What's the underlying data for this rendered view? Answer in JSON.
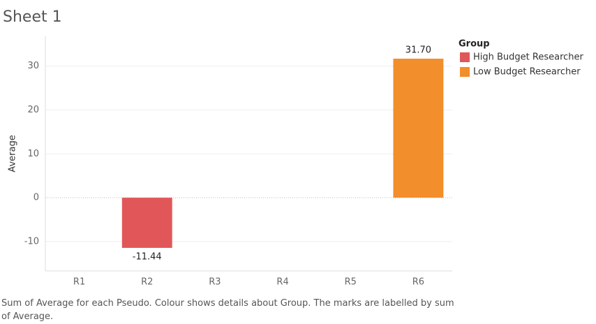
{
  "chart_data": {
    "type": "bar",
    "title": "Sheet 1",
    "categories": [
      "R1",
      "R2",
      "R3",
      "R4",
      "R5",
      "R6"
    ],
    "y_label": "Average",
    "legend_title": "Group",
    "series": [
      {
        "name": "High Budget Researcher",
        "color": "#e15759",
        "values": [
          null,
          -11.44,
          null,
          null,
          null,
          null
        ],
        "value_labels": [
          null,
          "-11.44",
          null,
          null,
          null,
          null
        ]
      },
      {
        "name": "Low Budget Researcher",
        "color": "#f28e2b",
        "values": [
          null,
          null,
          null,
          null,
          null,
          31.7
        ],
        "value_labels": [
          null,
          null,
          null,
          null,
          null,
          "31.70"
        ]
      }
    ],
    "ylim": [
      -16.7,
      36.8
    ],
    "yticks": [
      -10,
      0,
      10,
      20,
      30
    ],
    "grid": true,
    "caption": "Sum of Average for each Pseudo.  Colour shows details about Group.  The marks are labelled by sum of Average."
  }
}
